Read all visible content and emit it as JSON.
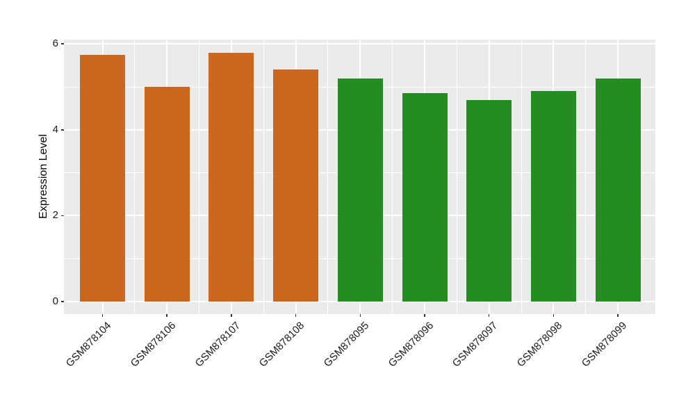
{
  "figure": {
    "title": "",
    "background_color": "#FFFFFF"
  },
  "chart_data": {
    "type": "bar",
    "title": "",
    "xlabel": "",
    "ylabel": "Expression Level",
    "categories": [
      "GSM878104",
      "GSM878106",
      "GSM878107",
      "GSM878108",
      "GSM878095",
      "GSM878096",
      "GSM878097",
      "GSM878098",
      "GSM878099"
    ],
    "values": [
      5.75,
      5.0,
      5.8,
      5.4,
      5.2,
      4.85,
      4.7,
      4.9,
      5.2
    ],
    "groups": [
      "group1",
      "group1",
      "group1",
      "group1",
      "group2",
      "group2",
      "group2",
      "group2",
      "group2"
    ],
    "group_colors": {
      "group1": "#CA661D",
      "group2": "#248C21"
    },
    "ylim": [
      -0.3,
      6.1
    ],
    "y_major_ticks": [
      0,
      2,
      4,
      6
    ],
    "y_minor_ticks": [
      1,
      3,
      5
    ],
    "grid": true,
    "legend": null,
    "panel_background": "#EBEBEB",
    "gridline_color": "#FFFFFF",
    "x_label_rotation_deg": 45
  }
}
